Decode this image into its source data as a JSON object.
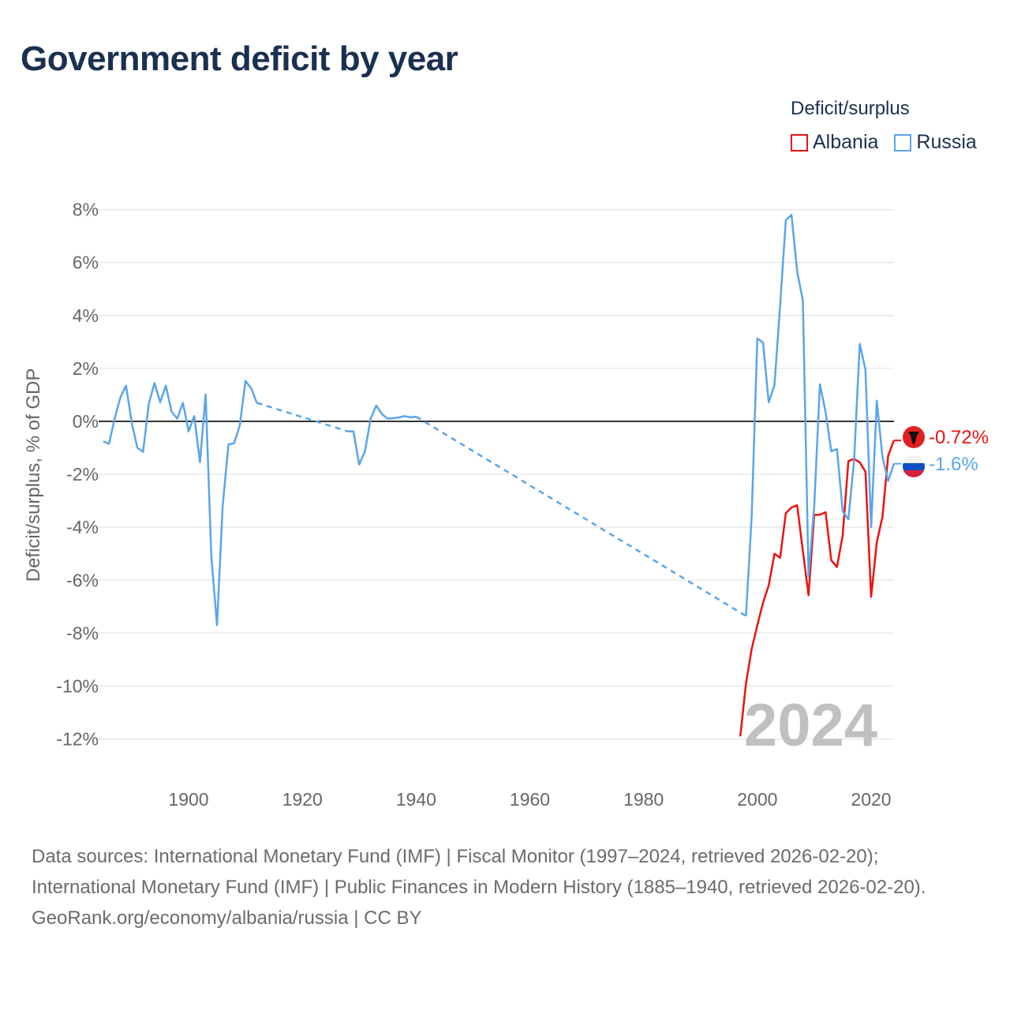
{
  "title": "Government deficit by year",
  "legend": {
    "title": "Deficit/surplus",
    "items": [
      {
        "name": "Albania",
        "color": "#ee1111"
      },
      {
        "name": "Russia",
        "color": "#5aa5ea"
      }
    ]
  },
  "year_watermark": "2024",
  "footer": {
    "sources": "Data sources: International Monetary Fund (IMF) | Fiscal Monitor (1997–2024, retrieved 2026-02-20); International Monetary Fund (IMF) | Public Finances in Modern History (1885–1940, retrieved 2026-02-20).",
    "credit": "GeoRank.org/economy/albania/russia | CC BY"
  },
  "chart_data": {
    "type": "line",
    "title": "Government deficit by year",
    "xlabel": "",
    "ylabel": "Deficit/surplus, % of GDP",
    "xlim": [
      1884.2,
      2023.9
    ],
    "ylim": [
      -13,
      8.5
    ],
    "xticks": [
      1900,
      1920,
      1940,
      1960,
      1980,
      2000,
      2020
    ],
    "yticks": [
      8,
      6,
      4,
      2,
      0,
      -2,
      -4,
      -6,
      -8,
      -10,
      -12
    ],
    "ytick_labels": [
      "8%",
      "6%",
      "4%",
      "2%",
      "0%",
      "-2%",
      "-4%",
      "-6%",
      "-8%",
      "-10%",
      "-12%"
    ],
    "grid": true,
    "legend_position": "top-right",
    "end_labels": {
      "Albania": "-0.72%",
      "Russia": "-1.6%"
    },
    "series": [
      {
        "name": "Albania",
        "color": "#ee1111",
        "points": [
          [
            1997,
            -11.9
          ],
          [
            1998,
            -9.9
          ],
          [
            1999,
            -8.6
          ],
          [
            2000,
            -7.7
          ],
          [
            2001,
            -6.85
          ],
          [
            2002,
            -6.2
          ],
          [
            2003,
            -5.0
          ],
          [
            2004,
            -5.15
          ],
          [
            2005,
            -3.47
          ],
          [
            2006,
            -3.25
          ],
          [
            2007,
            -3.17
          ],
          [
            2008,
            -4.9
          ],
          [
            2009,
            -6.57
          ],
          [
            2010,
            -3.53
          ],
          [
            2011,
            -3.53
          ],
          [
            2012,
            -3.43
          ],
          [
            2013,
            -5.25
          ],
          [
            2014,
            -5.5
          ],
          [
            2015,
            -4.3
          ],
          [
            2016,
            -1.5
          ],
          [
            2017,
            -1.42
          ],
          [
            2018,
            -1.55
          ],
          [
            2019,
            -1.9
          ],
          [
            2020,
            -6.63
          ],
          [
            2021,
            -4.57
          ],
          [
            2022,
            -3.6
          ],
          [
            2023,
            -1.3
          ],
          [
            2024,
            -0.72
          ]
        ]
      },
      {
        "name": "Russia",
        "color": "#5aa5ea",
        "points": [
          [
            1885,
            -0.75
          ],
          [
            1886,
            -0.85
          ],
          [
            1887,
            0.1
          ],
          [
            1888,
            0.9
          ],
          [
            1889,
            1.35
          ],
          [
            1890,
            -0.05
          ],
          [
            1891,
            -1.0
          ],
          [
            1892,
            -1.15
          ],
          [
            1893,
            0.65
          ],
          [
            1894,
            1.45
          ],
          [
            1895,
            0.72
          ],
          [
            1896,
            1.35
          ],
          [
            1897,
            0.37
          ],
          [
            1898,
            0.1
          ],
          [
            1899,
            0.7
          ],
          [
            1900,
            -0.38
          ],
          [
            1901,
            0.2
          ],
          [
            1902,
            -1.55
          ],
          [
            1903,
            1.02
          ],
          [
            1904,
            -5.1
          ],
          [
            1905,
            -7.7
          ],
          [
            1906,
            -3.2
          ],
          [
            1907,
            -0.87
          ],
          [
            1908,
            -0.83
          ],
          [
            1909,
            -0.15
          ],
          [
            1910,
            1.53
          ],
          [
            1911,
            1.25
          ],
          [
            1912,
            0.7
          ],
          [
            1928,
            -0.38
          ],
          [
            1929,
            -0.38
          ],
          [
            1930,
            -1.63
          ],
          [
            1931,
            -1.13
          ],
          [
            1932,
            0.1
          ],
          [
            1933,
            0.6
          ],
          [
            1934,
            0.27
          ],
          [
            1935,
            0.1
          ],
          [
            1936,
            0.12
          ],
          [
            1937,
            0.15
          ],
          [
            1938,
            0.2
          ],
          [
            1939,
            0.15
          ],
          [
            1940,
            0.18
          ],
          [
            1998,
            -7.35
          ],
          [
            1999,
            -3.6
          ],
          [
            2000,
            3.13
          ],
          [
            2001,
            2.98
          ],
          [
            2002,
            0.72
          ],
          [
            2003,
            1.37
          ],
          [
            2004,
            4.4
          ],
          [
            2005,
            7.6
          ],
          [
            2006,
            7.8
          ],
          [
            2007,
            5.65
          ],
          [
            2008,
            4.57
          ],
          [
            2009,
            -5.85
          ],
          [
            2010,
            -3.2
          ],
          [
            2011,
            1.4
          ],
          [
            2012,
            0.35
          ],
          [
            2013,
            -1.13
          ],
          [
            2014,
            -1.05
          ],
          [
            2015,
            -3.4
          ],
          [
            2016,
            -3.7
          ],
          [
            2017,
            -1.47
          ],
          [
            2018,
            2.93
          ],
          [
            2019,
            1.95
          ],
          [
            2020,
            -4.0
          ],
          [
            2021,
            0.78
          ],
          [
            2022,
            -1.35
          ],
          [
            2023,
            -2.25
          ],
          [
            2024,
            -1.6
          ]
        ]
      }
    ]
  }
}
